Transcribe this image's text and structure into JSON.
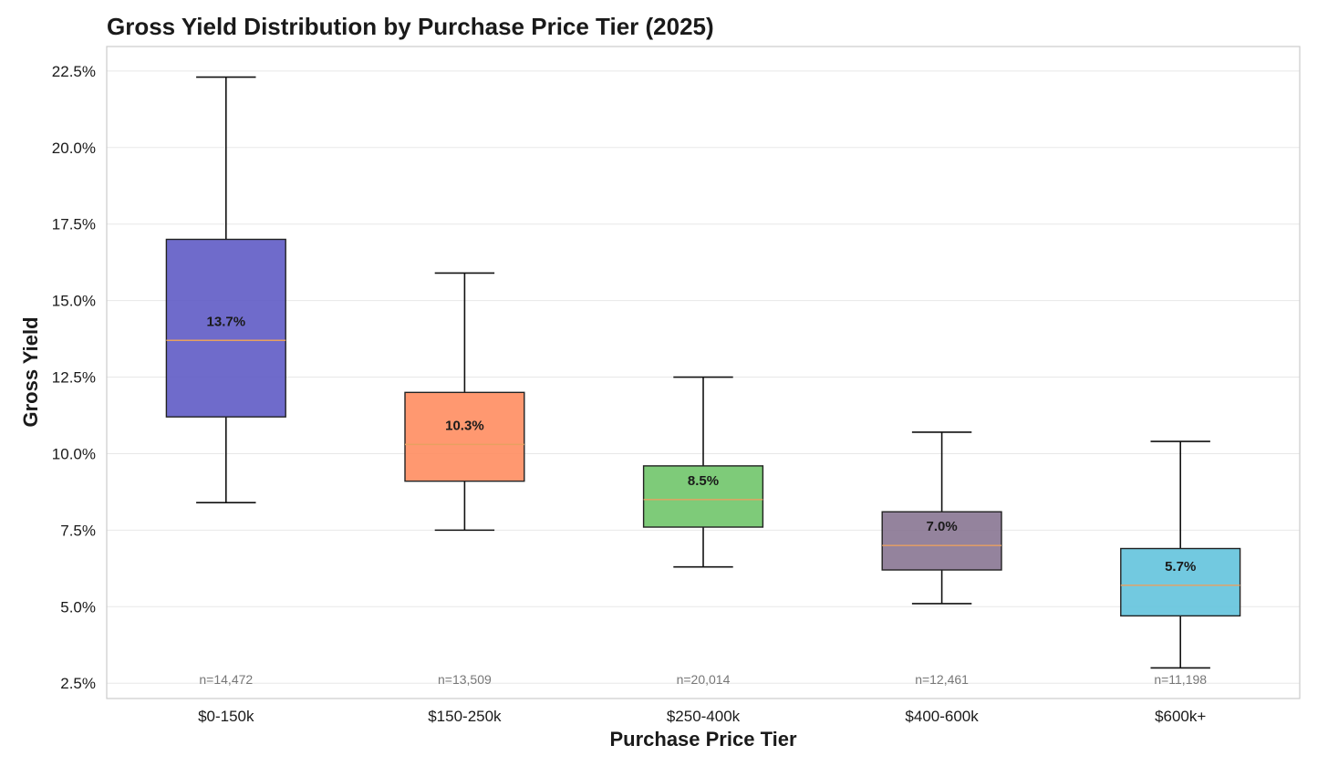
{
  "chart_data": {
    "type": "box",
    "title": "Gross Yield Distribution by Purchase Price Tier (2025)",
    "xlabel": "Purchase Price Tier",
    "ylabel": "Gross Yield",
    "ylim": [
      2.0,
      23.3
    ],
    "yticks": [
      2.5,
      5.0,
      7.5,
      10.0,
      12.5,
      15.0,
      17.5,
      20.0,
      22.5
    ],
    "ytick_labels": [
      "2.5%",
      "5.0%",
      "7.5%",
      "10.0%",
      "12.5%",
      "15.0%",
      "17.5%",
      "20.0%",
      "22.5%"
    ],
    "grid": true,
    "categories": [
      "$0-150k",
      "$150-250k",
      "$250-400k",
      "$400-600k",
      "$600k+"
    ],
    "boxes": [
      {
        "category": "$0-150k",
        "whisker_low": 8.4,
        "q1": 11.2,
        "median": 13.7,
        "q3": 17.0,
        "whisker_high": 22.3,
        "median_label": "13.7%",
        "n_label": "n=14,472",
        "color": "#5b57c4"
      },
      {
        "category": "$150-250k",
        "whisker_low": 7.5,
        "q1": 9.1,
        "median": 10.3,
        "q3": 12.0,
        "whisker_high": 15.9,
        "median_label": "10.3%",
        "n_label": "n=13,509",
        "color": "#ff8a5c"
      },
      {
        "category": "$250-400k",
        "whisker_low": 6.3,
        "q1": 7.6,
        "median": 8.5,
        "q3": 9.6,
        "whisker_high": 12.5,
        "median_label": "8.5%",
        "n_label": "n=20,014",
        "color": "#6cc466"
      },
      {
        "category": "$400-600k",
        "whisker_low": 5.1,
        "q1": 6.2,
        "median": 7.0,
        "q3": 8.1,
        "whisker_high": 10.7,
        "median_label": "7.0%",
        "n_label": "n=12,461",
        "color": "#85728f"
      },
      {
        "category": "$600k+",
        "whisker_low": 3.0,
        "q1": 4.7,
        "median": 5.7,
        "q3": 6.9,
        "whisker_high": 10.4,
        "median_label": "5.7%",
        "n_label": "n=11,198",
        "color": "#5fc1dc"
      }
    ],
    "median_line_color": "#e8a060"
  }
}
